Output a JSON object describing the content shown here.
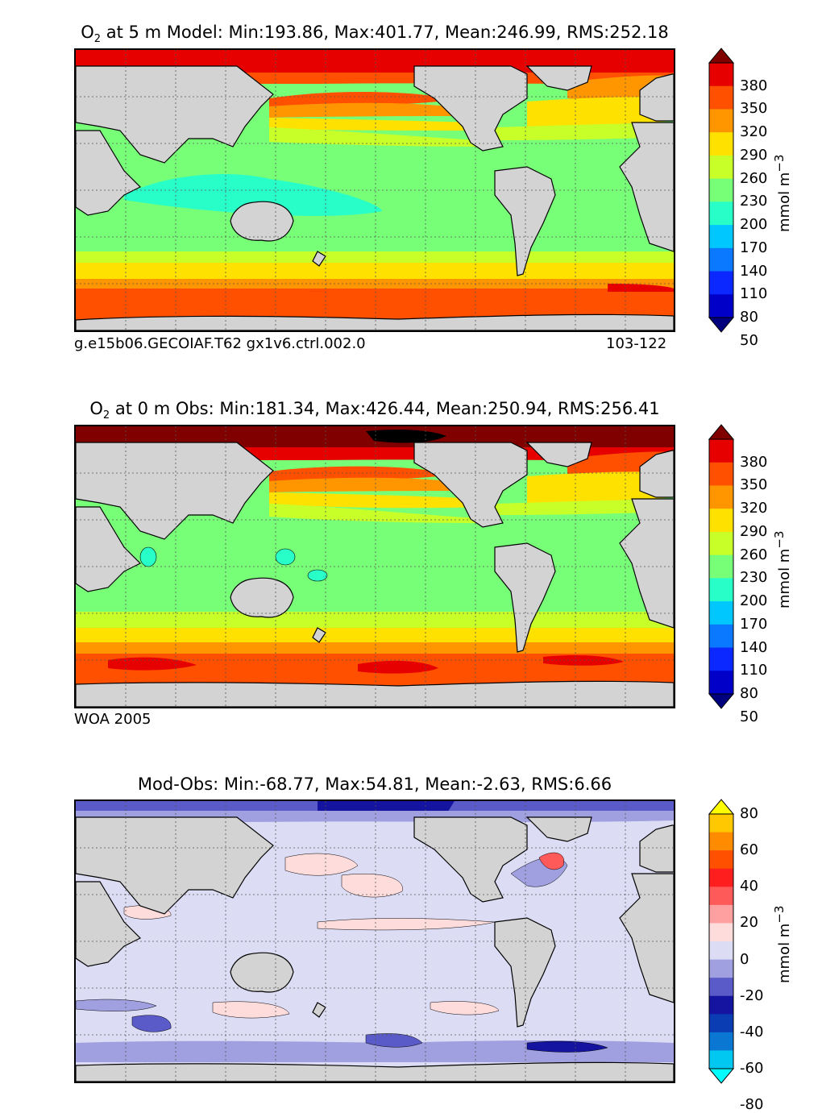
{
  "panels": [
    {
      "title_prefix": "O",
      "title_sub": "2",
      "title_rest": " at 5 m Model: Min:193.86, Max:401.77, Mean:246.99, RMS:252.18",
      "caption_left": "g.e15b06.GECOIAF.T62 gx1v6.ctrl.002.0",
      "caption_right": "103-122",
      "colorbar": {
        "ticks": [
          "380",
          "350",
          "320",
          "290",
          "260",
          "230",
          "200",
          "170",
          "140",
          "110",
          "80",
          "50"
        ],
        "colors": [
          "#00007f",
          "#0000c8",
          "#0a28ff",
          "#0a78ff",
          "#00c8ff",
          "#28ffc8",
          "#78ff78",
          "#c8ff28",
          "#ffe100",
          "#ff9600",
          "#ff5000",
          "#e60000",
          "#800000"
        ],
        "units": "mmol m",
        "units_sup": "−3"
      }
    },
    {
      "title_prefix": "O",
      "title_sub": "2",
      "title_rest": " at 0 m Obs: Min:181.34, Max:426.44, Mean:250.94, RMS:256.41",
      "caption_left": "WOA 2005",
      "caption_right": "",
      "colorbar": {
        "ticks": [
          "380",
          "350",
          "320",
          "290",
          "260",
          "230",
          "200",
          "170",
          "140",
          "110",
          "80",
          "50"
        ],
        "colors": [
          "#00007f",
          "#0000c8",
          "#0a28ff",
          "#0a78ff",
          "#00c8ff",
          "#28ffc8",
          "#78ff78",
          "#c8ff28",
          "#ffe100",
          "#ff9600",
          "#ff5000",
          "#e60000",
          "#800000"
        ],
        "units": "mmol m",
        "units_sup": "−3"
      }
    },
    {
      "title_prefix": "",
      "title_sub": "",
      "title_rest": "Mod-Obs: Min:-68.77, Max:54.81, Mean:-2.63, RMS:6.66",
      "caption_left": "",
      "caption_right": "",
      "colorbar": {
        "ticks": [
          "80",
          "60",
          "40",
          "20",
          "0",
          "-20",
          "-40",
          "-60",
          "-80"
        ],
        "colors": [
          "#00ffff",
          "#00c8f0",
          "#0a78d2",
          "#0a3cb4",
          "#1414a0",
          "#5a5ac8",
          "#a0a0e1",
          "#dcdcf5",
          "#ffdcdc",
          "#ffa0a0",
          "#ff5a5a",
          "#ff1e1e",
          "#ff5000",
          "#ff8c00",
          "#ffc800",
          "#ffff00"
        ],
        "units": "mmol m",
        "units_sup": "−3"
      }
    }
  ],
  "colors": {
    "land": "#d3d3d3",
    "frame": "#000000"
  }
}
